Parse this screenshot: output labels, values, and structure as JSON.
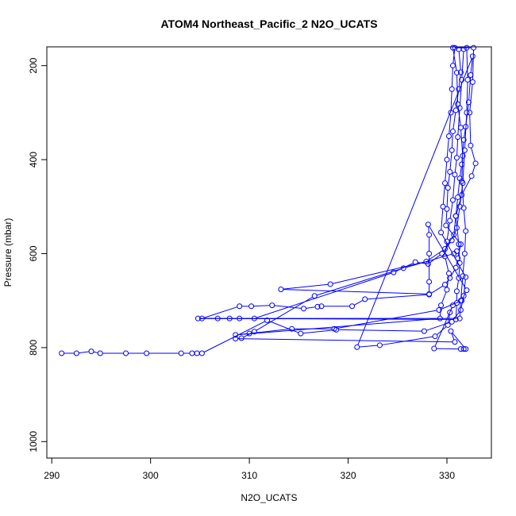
{
  "chart_data": {
    "type": "line",
    "title": "ATOM4 Northeast_Pacific_2 N2O_UCATS",
    "xlabel": "N2O_UCATS",
    "ylabel": "Pressure (mbar)",
    "xlim": [
      289.5,
      334.5
    ],
    "ylim": [
      1035,
      160
    ],
    "y_reversed": true,
    "x_ticks": [
      290,
      300,
      310,
      320,
      330
    ],
    "y_ticks": [
      200,
      400,
      600,
      800,
      1000
    ],
    "grid": false,
    "legend": "none",
    "series": [
      {
        "color": "#0000ff",
        "marker": "open-circle",
        "points": [
          [
            291.0,
            812
          ],
          [
            292.5,
            812
          ],
          [
            294.0,
            808
          ],
          [
            294.9,
            812
          ],
          [
            297.5,
            812
          ],
          [
            299.6,
            812
          ],
          [
            303.1,
            812
          ],
          [
            304.2,
            812
          ],
          [
            304.7,
            812
          ],
          [
            305.2,
            812
          ],
          [
            311.8,
            742
          ],
          [
            315.2,
            770
          ],
          [
            318.8,
            762
          ],
          [
            327.7,
            765
          ],
          [
            330.5,
            745
          ],
          [
            331.4,
            720
          ],
          [
            331.7,
            690
          ],
          [
            331.9,
            650
          ],
          [
            329.4,
            555
          ],
          [
            329.6,
            500
          ],
          [
            329.8,
            450
          ],
          [
            330.0,
            400
          ],
          [
            330.2,
            350
          ],
          [
            330.4,
            300
          ],
          [
            330.5,
            250
          ],
          [
            330.6,
            200
          ],
          [
            330.8,
            162
          ],
          [
            332.7,
            162
          ],
          [
            332.6,
            235
          ],
          [
            332.3,
            300
          ],
          [
            332.4,
            370
          ],
          [
            332.9,
            408
          ],
          [
            332.5,
            435
          ],
          [
            331.5,
            475
          ],
          [
            330.9,
            520
          ],
          [
            331.2,
            580
          ],
          [
            331.3,
            620
          ],
          [
            331.2,
            652
          ],
          [
            331.0,
            680
          ],
          [
            331.0,
            705
          ],
          [
            330.9,
            740
          ],
          [
            304.8,
            738
          ],
          [
            306.8,
            738
          ],
          [
            308.0,
            738
          ],
          [
            309.0,
            738
          ],
          [
            310.5,
            738
          ],
          [
            324.6,
            640
          ],
          [
            326.8,
            618
          ],
          [
            328.1,
            622
          ],
          [
            329.5,
            600
          ],
          [
            330.5,
            572
          ],
          [
            331.0,
            545
          ],
          [
            331.3,
            500
          ],
          [
            331.6,
            450
          ],
          [
            331.8,
            380
          ],
          [
            332.0,
            300
          ],
          [
            332.1,
            230
          ],
          [
            332.0,
            162
          ],
          [
            330.6,
            162
          ],
          [
            331.0,
            215
          ],
          [
            331.1,
            282
          ],
          [
            331.4,
            332
          ],
          [
            331.6,
            392
          ],
          [
            331.5,
            446
          ],
          [
            331.7,
            503
          ],
          [
            331.9,
            552
          ],
          [
            331.8,
            600
          ],
          [
            331.6,
            648
          ],
          [
            331.4,
            700
          ],
          [
            331.3,
            738
          ],
          [
            305.2,
            738
          ],
          [
            309.0,
            712
          ],
          [
            310.2,
            712
          ],
          [
            312.3,
            710
          ],
          [
            315.5,
            717
          ],
          [
            316.9,
            713
          ],
          [
            317.3,
            712
          ],
          [
            320.4,
            712
          ],
          [
            321.7,
            697
          ],
          [
            328.2,
            687
          ],
          [
            329.8,
            666
          ],
          [
            330.3,
            652
          ],
          [
            330.9,
            630
          ],
          [
            331.1,
            610
          ],
          [
            331.4,
            580
          ],
          [
            329.9,
            540
          ],
          [
            330.0,
            505
          ],
          [
            330.1,
            460
          ],
          [
            330.3,
            426
          ],
          [
            330.5,
            380
          ],
          [
            330.6,
            340
          ],
          [
            330.9,
            295
          ],
          [
            331.2,
            250
          ],
          [
            331.4,
            214
          ],
          [
            331.2,
            165
          ],
          [
            331.7,
            165
          ],
          [
            331.5,
            230
          ],
          [
            331.3,
            290
          ],
          [
            331.1,
            352
          ],
          [
            331.0,
            396
          ],
          [
            330.8,
            432
          ],
          [
            330.6,
            486
          ],
          [
            330.3,
            530
          ],
          [
            330.0,
            574
          ],
          [
            329.8,
            606
          ],
          [
            330.2,
            642
          ],
          [
            330.0,
            677
          ],
          [
            329.4,
            710
          ],
          [
            329.3,
            738
          ],
          [
            308.6,
            773
          ],
          [
            310.0,
            770
          ],
          [
            314.3,
            760
          ],
          [
            318.6,
            760
          ],
          [
            329.2,
            720
          ],
          [
            331.5,
            700
          ],
          [
            332.0,
            678
          ],
          [
            328.1,
            538
          ],
          [
            328.2,
            560
          ],
          [
            328.2,
            600
          ],
          [
            328.2,
            660
          ],
          [
            328.2,
            686
          ],
          [
            313.2,
            676
          ],
          [
            318.2,
            665
          ],
          [
            327.9,
            617
          ],
          [
            329.8,
            590
          ],
          [
            330.7,
            560
          ],
          [
            330.9,
            520
          ],
          [
            331.1,
            480
          ],
          [
            331.3,
            440
          ],
          [
            331.5,
            410
          ],
          [
            331.7,
            358
          ],
          [
            331.9,
            330
          ],
          [
            332.2,
            278
          ],
          [
            332.4,
            220
          ],
          [
            332.6,
            180
          ],
          [
            320.9,
            799
          ],
          [
            323.2,
            795
          ],
          [
            328.8,
            776
          ],
          [
            330.1,
            752
          ],
          [
            330.3,
            725
          ],
          [
            330.6,
            710
          ],
          [
            328.7,
            802
          ],
          [
            331.4,
            803
          ],
          [
            331.7,
            803
          ],
          [
            331.9,
            803
          ],
          [
            330.4,
            765
          ],
          [
            330.8,
            788
          ],
          [
            308.6,
            781
          ],
          [
            309.2,
            780
          ],
          [
            310.5,
            766
          ],
          [
            316.6,
            690
          ],
          [
            325.6,
            631
          ],
          [
            330.7,
            600
          ],
          [
            331.0,
            595
          ]
        ]
      }
    ]
  }
}
